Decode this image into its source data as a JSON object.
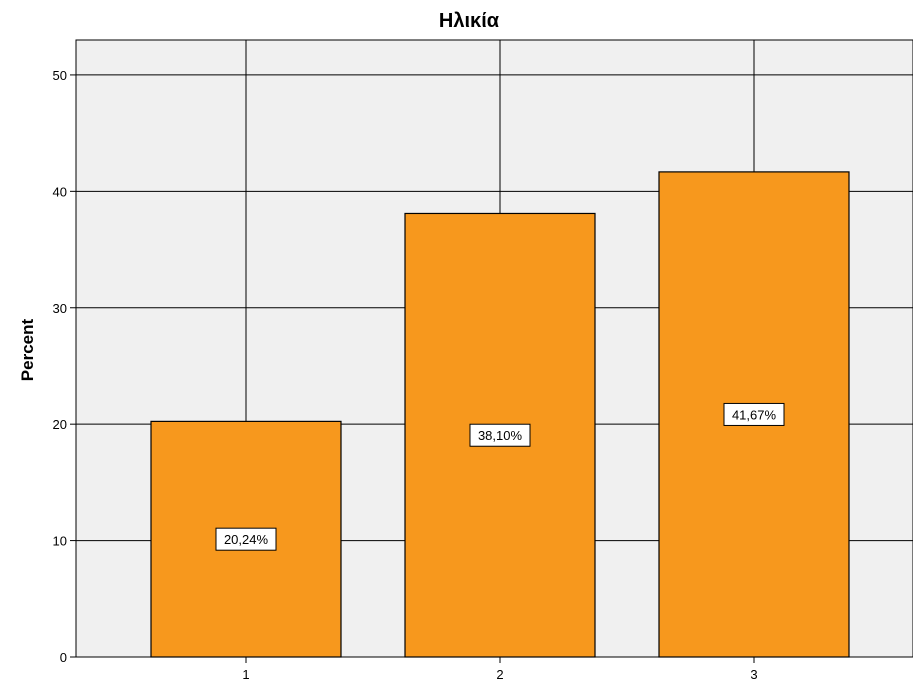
{
  "chart_data": {
    "type": "bar",
    "title": "Ηλικία",
    "xlabel": "",
    "ylabel": "Percent",
    "categories": [
      "1",
      "2",
      "3"
    ],
    "values": [
      20.24,
      38.1,
      41.67
    ],
    "data_labels": [
      "20,24%",
      "38,10%",
      "41,67%"
    ],
    "ylim": [
      0,
      53
    ],
    "yticks": [
      0,
      10,
      20,
      30,
      40,
      50
    ],
    "grid": true,
    "colors": {
      "bar": "#f7981d",
      "plot_background": "#f0f0f0",
      "grid": "#000000"
    }
  }
}
